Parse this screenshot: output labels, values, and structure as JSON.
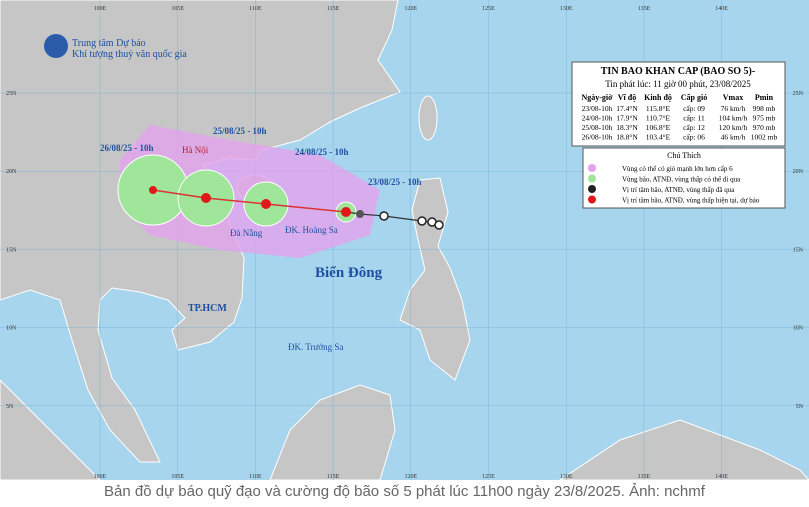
{
  "header": {
    "org": "Trung tâm Dự báo",
    "org_sub": "Khí tượng thuỷ văn quốc gia"
  },
  "bulletin": {
    "title": "TIN BAO KHAN CAP (BAO SO 5)-",
    "issued": "Tin phát lúc: 11 giờ 00 phút, 23/08/2025",
    "columns": [
      "Ngày-giờ",
      "Vĩ độ",
      "Kinh độ",
      "Cấp gió",
      "Vmax",
      "Pmin"
    ],
    "rows": [
      [
        "23/08-10h",
        "17.4°N",
        "115.8°E",
        "cấp: 09",
        "76 km/h",
        "998 mb"
      ],
      [
        "24/08-10h",
        "17.9°N",
        "110.7°E",
        "cấp: 11",
        "104 km/h",
        "975 mb"
      ],
      [
        "25/08-10h",
        "18.3°N",
        "106.8°E",
        "cấp: 12",
        "120 km/h",
        "970 mb"
      ],
      [
        "26/08-10h",
        "18.8°N",
        "103.4°E",
        "cấp: 06",
        "46 km/h",
        "1002 mb"
      ]
    ]
  },
  "legend": {
    "title": "Chú Thích",
    "items": [
      "Vùng có thể có gió mạnh lớn hơn cấp 6",
      "Vùng bão, ATNĐ, vùng thấp có thể đi qua",
      "Vị trí tâm bão, ATNĐ, vùng thấp đã qua",
      "Vị trí tâm bão, ATNĐ, vùng thấp hiện tại, dự báo"
    ]
  },
  "map": {
    "labels": [
      "Hà Nội",
      "Đà Nẵng",
      "ĐK. Hoàng Sa",
      "Biển Đông",
      "TP.HCM",
      "ĐK. Trường Sa",
      "26/08/25 - 10h",
      "25/08/25 - 10h",
      "24/08/25 - 10h",
      "23/08/25 - 10h"
    ],
    "lon_labels": [
      "100E",
      "105E",
      "110E",
      "115E",
      "120E",
      "125E",
      "130E",
      "135E",
      "140E"
    ],
    "lat_labels": [
      "25N",
      "20N",
      "15N",
      "10N",
      "5N"
    ]
  },
  "caption": "Bản đồ dự báo quỹ đạo và cường độ bão số 5 phát lúc 11h00 ngày 23/8/2025. Ảnh: nchmf"
}
